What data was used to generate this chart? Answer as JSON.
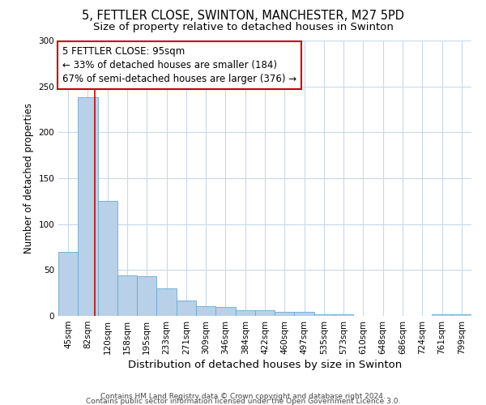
{
  "title1": "5, FETTLER CLOSE, SWINTON, MANCHESTER, M27 5PD",
  "title2": "Size of property relative to detached houses in Swinton",
  "xlabel": "Distribution of detached houses by size in Swinton",
  "ylabel": "Number of detached properties",
  "bin_labels": [
    "45sqm",
    "82sqm",
    "120sqm",
    "158sqm",
    "195sqm",
    "233sqm",
    "271sqm",
    "309sqm",
    "346sqm",
    "384sqm",
    "422sqm",
    "460sqm",
    "497sqm",
    "535sqm",
    "573sqm",
    "610sqm",
    "648sqm",
    "686sqm",
    "724sqm",
    "761sqm",
    "799sqm"
  ],
  "bar_values": [
    70,
    238,
    125,
    44,
    43,
    30,
    17,
    11,
    10,
    6,
    6,
    4,
    4,
    2,
    2,
    0,
    0,
    0,
    0,
    2,
    2
  ],
  "bar_color": "#b8d0e8",
  "bar_edge_color": "#6aaad4",
  "background_color": "#ffffff",
  "grid_color": "#c8d8ec",
  "annotation_line1": "5 FETTLER CLOSE: 95sqm",
  "annotation_line2": "← 33% of detached houses are smaller (184)",
  "annotation_line3": "67% of semi-detached houses are larger (376) →",
  "annotation_box_edge": "#cc0000",
  "ylim": [
    0,
    300
  ],
  "yticks": [
    0,
    50,
    100,
    150,
    200,
    250,
    300
  ],
  "footer_line1": "Contains HM Land Registry data © Crown copyright and database right 2024.",
  "footer_line2": "Contains public sector information licensed under the Open Government Licence 3.0.",
  "title1_fontsize": 10.5,
  "title2_fontsize": 9.5,
  "xlabel_fontsize": 9.5,
  "ylabel_fontsize": 8.5,
  "tick_fontsize": 7.5,
  "annotation_fontsize": 8.5,
  "footer_fontsize": 6.5
}
